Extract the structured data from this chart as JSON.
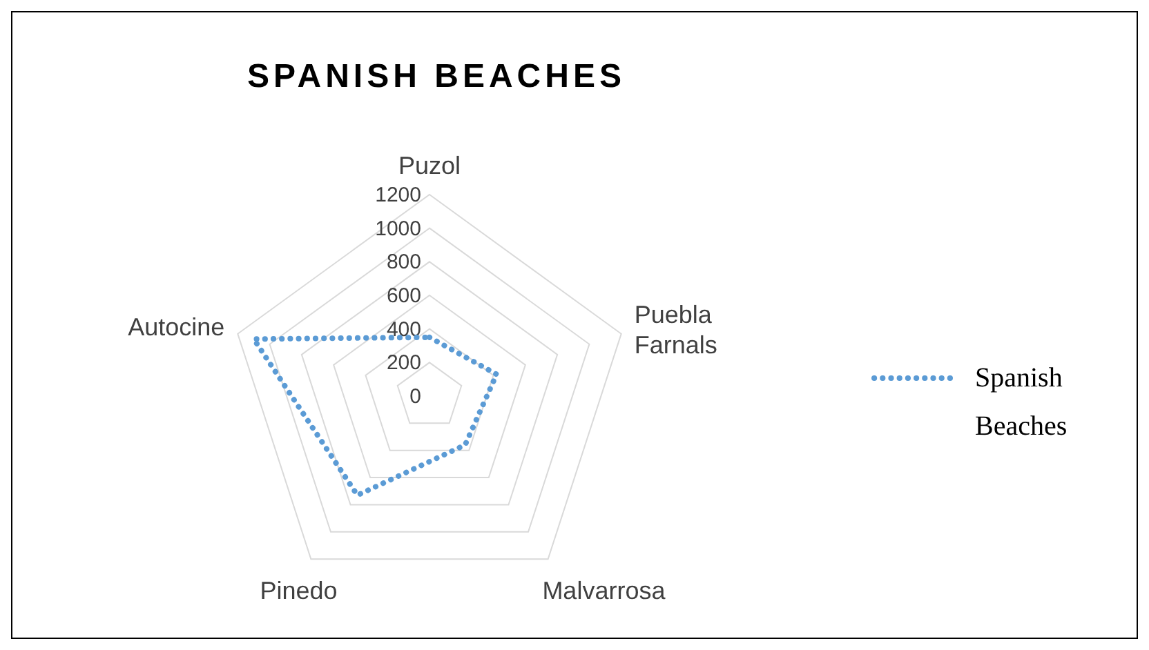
{
  "chart_data": {
    "type": "radar",
    "title": "SPANISH BEACHES",
    "categories": [
      "Puzol",
      "Puebla Farnals",
      "Malvarrosa",
      "Pinedo",
      "Autocine"
    ],
    "series": [
      {
        "name": "Spanish Beaches",
        "color": "#5b9bd5",
        "values": [
          350,
          420,
          360,
          730,
          1100
        ]
      }
    ],
    "ylim": [
      0,
      1200
    ],
    "yticks": [
      0,
      200,
      400,
      600,
      800,
      1000,
      1200
    ],
    "legend": "right",
    "line_style": "dotted",
    "grid": true
  }
}
